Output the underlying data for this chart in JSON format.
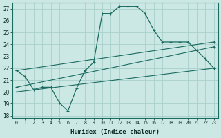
{
  "xlabel": "Humidex (Indice chaleur)",
  "ylabel": "",
  "background_color": "#cce8e4",
  "grid_color": "#a8d0cc",
  "line_color": "#1a6b60",
  "xlim": [
    -0.5,
    23.5
  ],
  "ylim": [
    17.8,
    27.5
  ],
  "yticks": [
    18,
    19,
    20,
    21,
    22,
    23,
    24,
    25,
    26,
    27
  ],
  "xticks": [
    0,
    1,
    2,
    3,
    4,
    5,
    6,
    7,
    8,
    9,
    10,
    11,
    12,
    13,
    14,
    15,
    16,
    17,
    18,
    19,
    20,
    21,
    22,
    23
  ],
  "series": [
    {
      "x": [
        0,
        1,
        2,
        3,
        4,
        5,
        6,
        7,
        8,
        9,
        10,
        11,
        12,
        13,
        14,
        15,
        16,
        17,
        18,
        19,
        20,
        21,
        22,
        23
      ],
      "y": [
        21.8,
        21.3,
        20.2,
        20.4,
        20.4,
        19.1,
        18.4,
        20.3,
        21.8,
        22.5,
        26.6,
        26.6,
        27.2,
        27.2,
        27.2,
        26.6,
        25.2,
        24.2,
        24.2,
        24.2,
        24.2,
        23.5,
        22.8,
        22.0
      ]
    },
    {
      "x": [
        0,
        23
      ],
      "y": [
        21.8,
        24.2
      ]
    },
    {
      "x": [
        0,
        23
      ],
      "y": [
        20.4,
        23.8
      ]
    },
    {
      "x": [
        0,
        23
      ],
      "y": [
        20.0,
        22.0
      ]
    }
  ]
}
